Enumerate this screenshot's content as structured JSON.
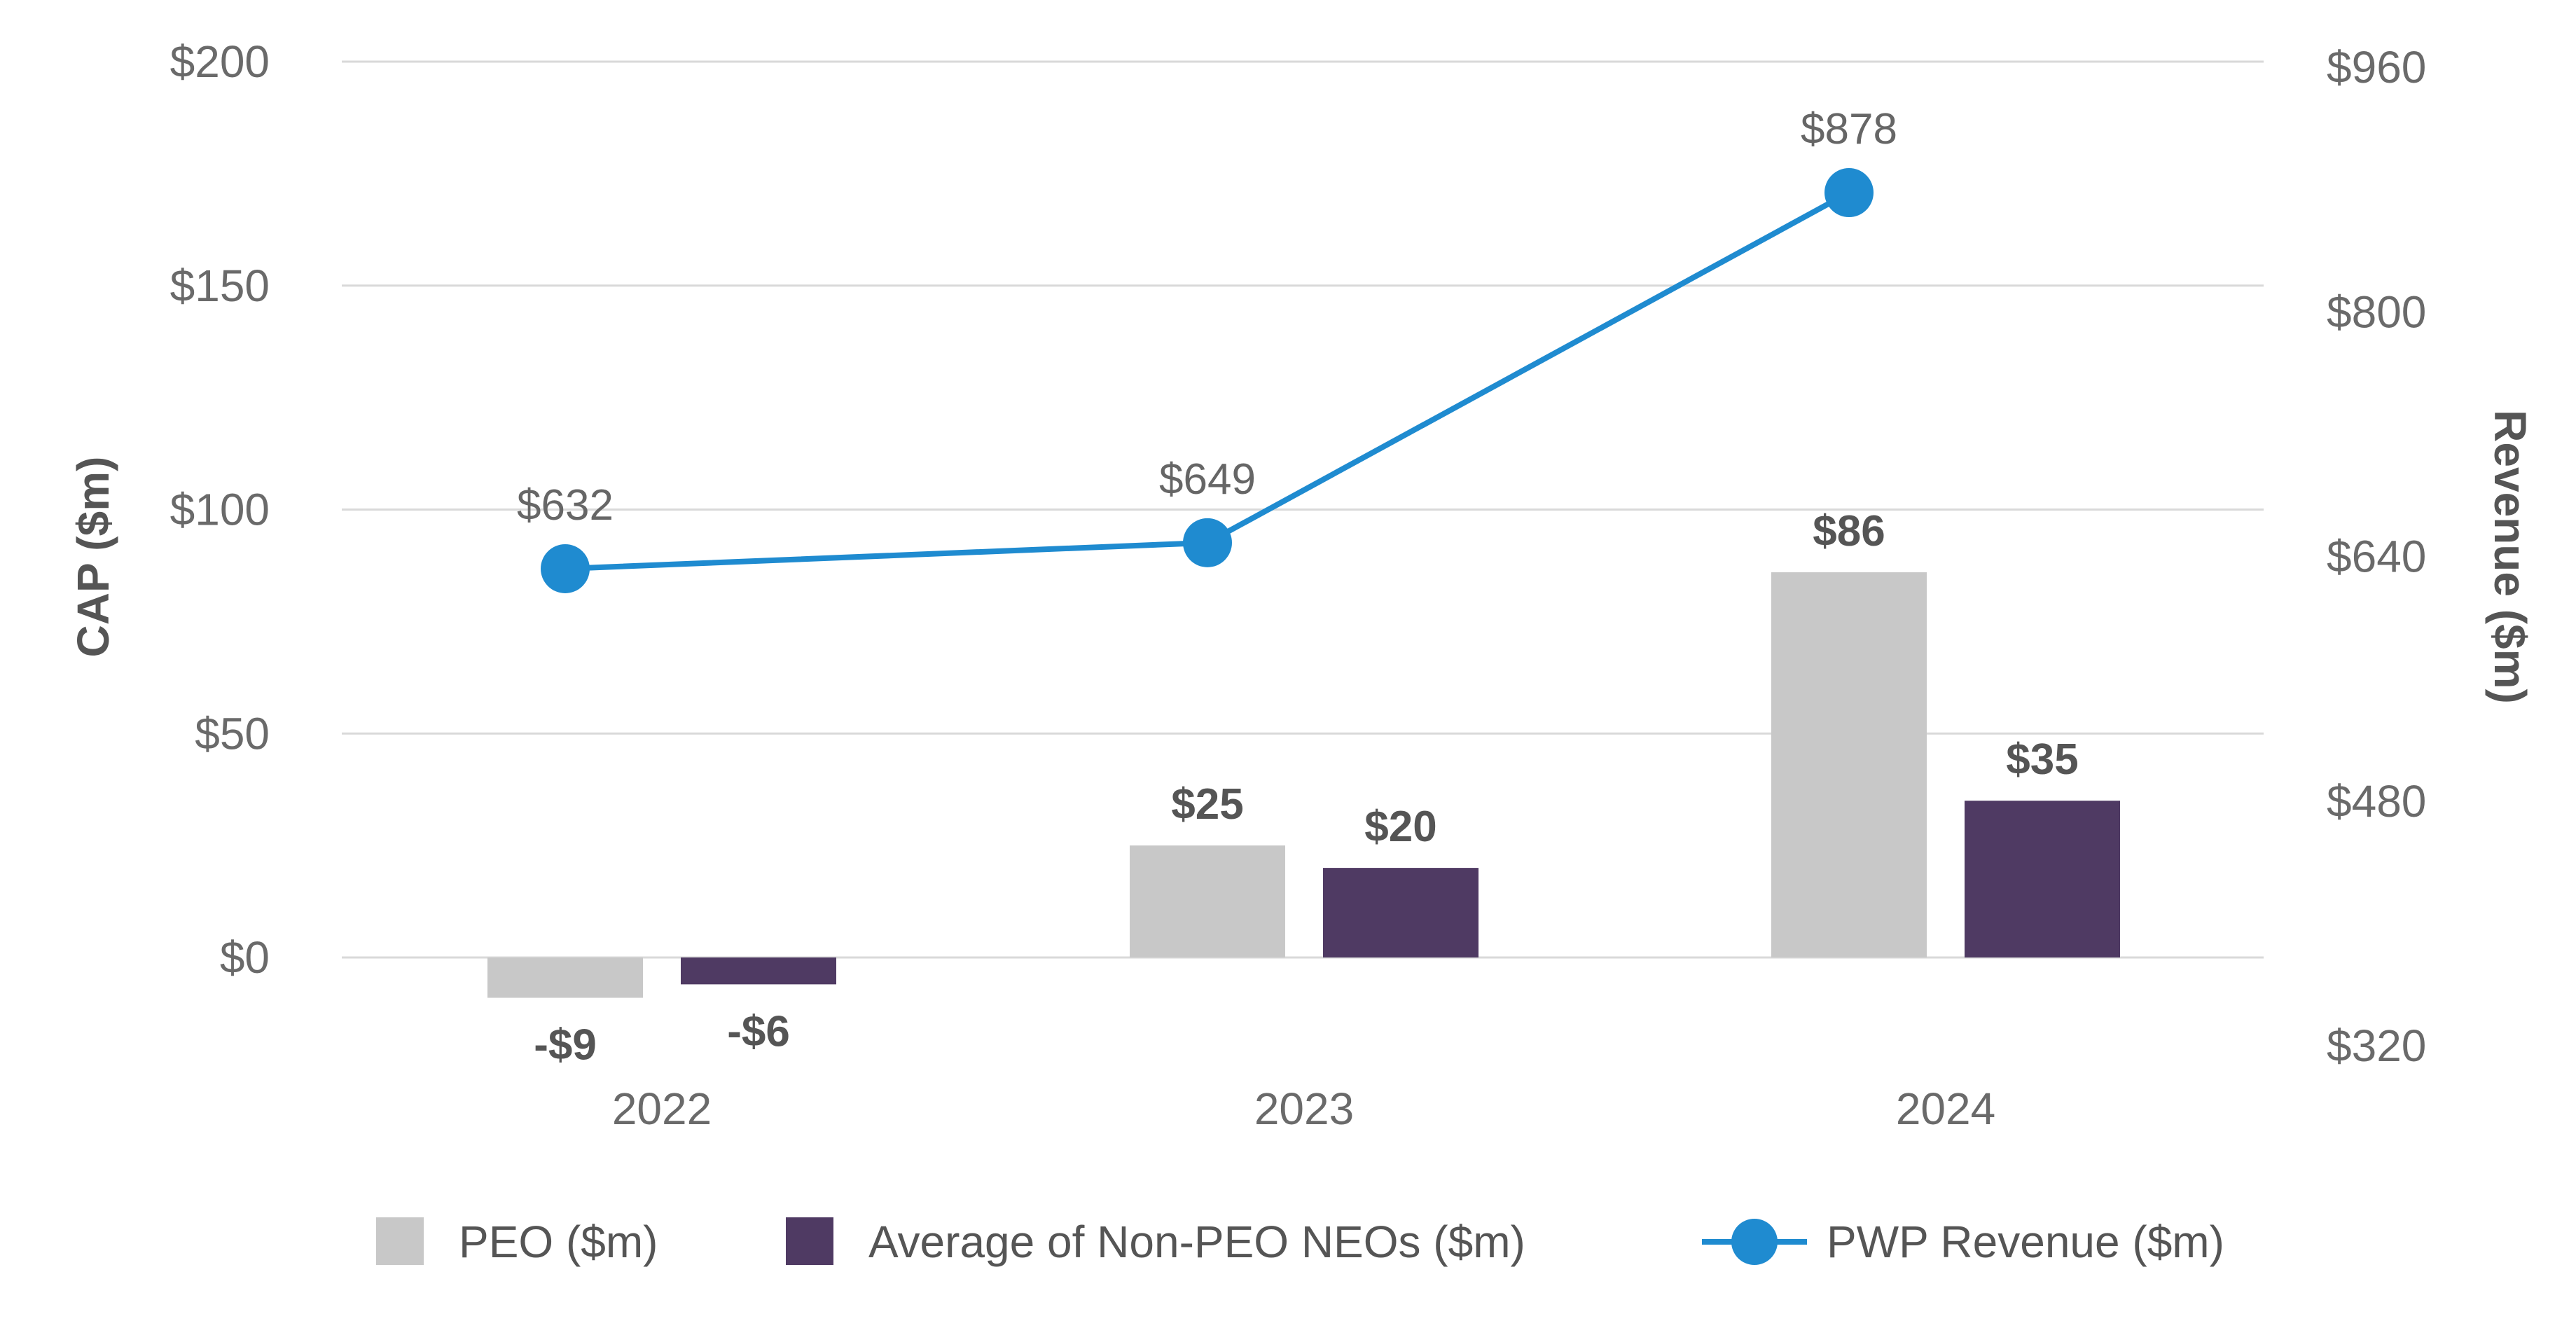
{
  "chart_data": {
    "type": "bar",
    "categories": [
      "2022",
      "2023",
      "2024"
    ],
    "series": [
      {
        "name": "PEO ($m)",
        "kind": "bar",
        "axis": "left",
        "color": "#c8c8c8",
        "values": [
          -9,
          25,
          86
        ],
        "labels": [
          "-$9",
          "$25",
          "$86"
        ]
      },
      {
        "name": "Average of Non-PEO NEOs ($m)",
        "kind": "bar",
        "axis": "left",
        "color": "#4f3a63",
        "values": [
          -6,
          20,
          35
        ],
        "labels": [
          "-$6",
          "$20",
          "$35"
        ]
      },
      {
        "name": "PWP Revenue ($m)",
        "kind": "line",
        "axis": "right",
        "color": "#1f8bd0",
        "values": [
          632,
          649,
          878
        ],
        "labels": [
          "$632",
          "$649",
          "$878"
        ]
      }
    ],
    "ylabel": "CAP ($m)",
    "y2label": "Revenue ($m)",
    "ylim": [
      -15,
      200
    ],
    "y2lim": [
      320,
      960
    ],
    "yticks": [
      0,
      50,
      100,
      150,
      200
    ],
    "ytick_labels": [
      "$0",
      "$50",
      "$100",
      "$150",
      "$200"
    ],
    "y2ticks": [
      320,
      480,
      640,
      800,
      960
    ],
    "y2tick_labels": [
      "$320",
      "$480",
      "$640",
      "$800",
      "$960"
    ],
    "grid": true,
    "legend_position": "bottom"
  }
}
